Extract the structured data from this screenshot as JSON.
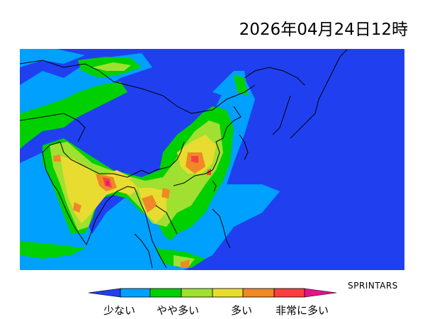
{
  "title": "2026年04月24日12時",
  "credit": "SPRINTARS",
  "colorbar": {
    "colors": [
      "#2040f0",
      "#00a0ff",
      "#00d000",
      "#a0e030",
      "#e8dc30",
      "#f08828",
      "#f84040",
      "#e8108c"
    ],
    "labels": [
      "少ない",
      "やや多い",
      "多い",
      "非常に多い"
    ]
  },
  "map": {
    "background_color": "#2040f0",
    "border_color": "#000000"
  }
}
